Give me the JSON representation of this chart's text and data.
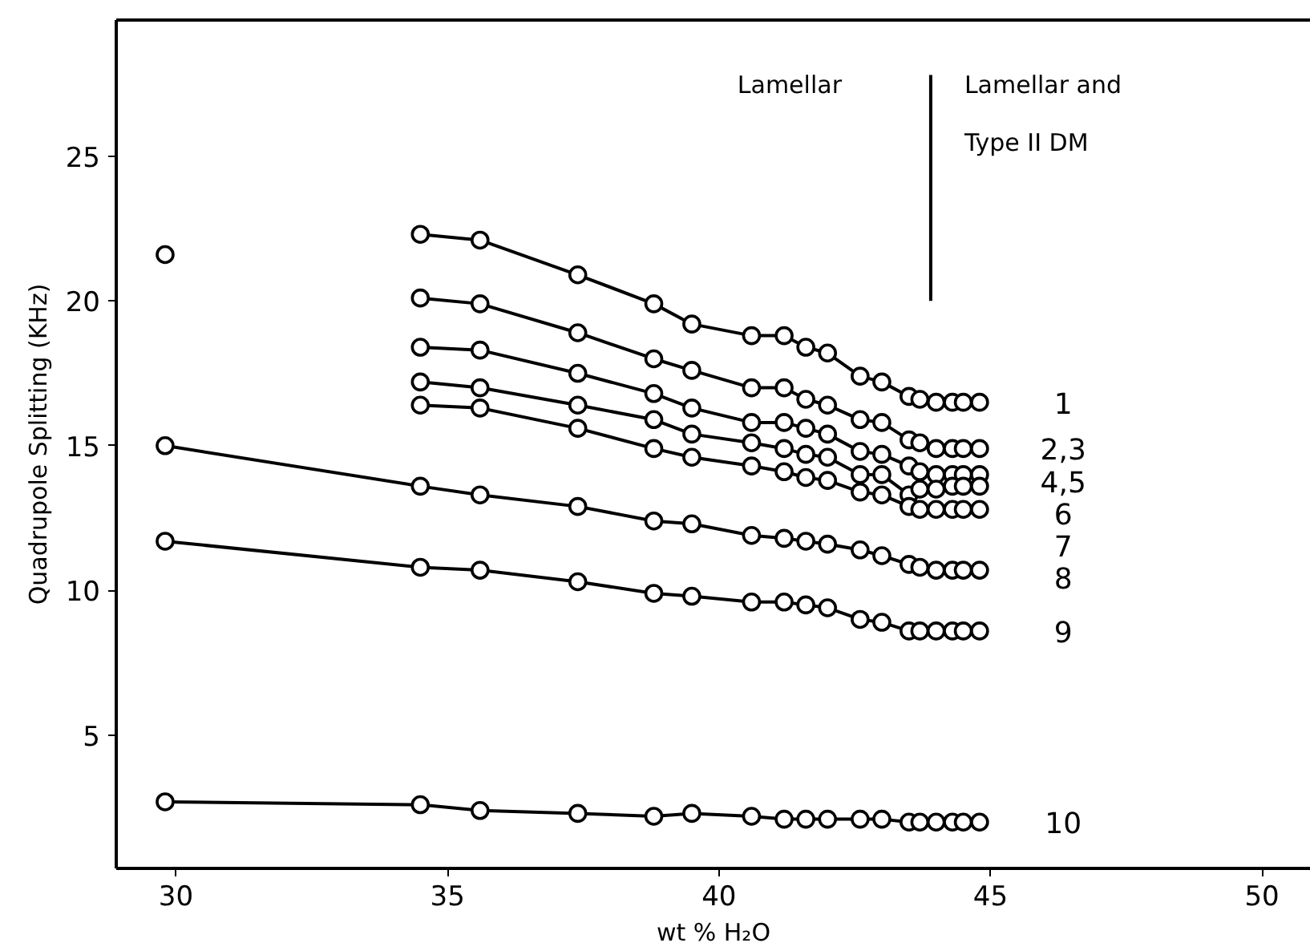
{
  "chart_data": {
    "type": "line",
    "xlabel": "wt % H₂O",
    "ylabel": "Quadrupole Splitting (KHz)",
    "xlim": [
      28.9,
      50.9
    ],
    "ylim": [
      0.4,
      29.7
    ],
    "xticks": [
      30,
      35,
      40,
      45,
      50
    ],
    "yticks": [
      5,
      10,
      15,
      20,
      25
    ],
    "grid": false,
    "marker": "circle",
    "line_style": "solid",
    "annotations": [
      "Lamellar",
      "Lamellar and\nType II DM"
    ],
    "series": [
      {
        "name": "1",
        "color": "#000000",
        "x": [
          34.5,
          35.6,
          37.4,
          38.8,
          39.5,
          40.6,
          41.2,
          41.6,
          42.0,
          42.6,
          43.0,
          43.5,
          43.7,
          44.0,
          44.3,
          44.5,
          44.8
        ],
        "values": [
          22.3,
          22.1,
          20.9,
          19.9,
          19.2,
          18.8,
          18.8,
          18.4,
          18.2,
          17.4,
          17.2,
          16.7,
          16.6,
          16.5,
          16.5,
          16.5,
          16.5
        ]
      },
      {
        "name": "2,3",
        "color": "#000000",
        "x": [
          34.5,
          35.6,
          37.4,
          38.8,
          39.5,
          40.6,
          41.2,
          41.6,
          42.0,
          42.6,
          43.0,
          43.5,
          43.7,
          44.0,
          44.3,
          44.5,
          44.8
        ],
        "values": [
          20.1,
          19.9,
          18.9,
          18.0,
          17.6,
          17.0,
          17.0,
          16.6,
          16.4,
          15.9,
          15.8,
          15.2,
          15.1,
          14.9,
          14.9,
          14.9,
          14.9
        ]
      },
      {
        "name": "4,5",
        "color": "#000000",
        "x": [
          34.5,
          35.6,
          37.4,
          38.8,
          39.5,
          40.6,
          41.2,
          41.6,
          42.0,
          42.6,
          43.0,
          43.5,
          43.7,
          44.0,
          44.3,
          44.5,
          44.8
        ],
        "values": [
          18.4,
          18.3,
          17.5,
          16.8,
          16.3,
          15.8,
          15.8,
          15.6,
          15.4,
          14.8,
          14.7,
          14.3,
          14.1,
          14.0,
          14.0,
          14.0,
          14.0
        ]
      },
      {
        "name": "6",
        "color": "#000000",
        "x": [
          34.5,
          35.6,
          37.4,
          38.8,
          39.5,
          40.6,
          41.2,
          41.6,
          42.0,
          42.6,
          43.0,
          43.5,
          43.7,
          44.0,
          44.3,
          44.5,
          44.8
        ],
        "values": [
          17.2,
          17.0,
          16.4,
          15.9,
          15.4,
          15.1,
          14.9,
          14.7,
          14.6,
          14.0,
          14.0,
          13.3,
          13.5,
          13.5,
          13.6,
          13.6,
          13.6
        ]
      },
      {
        "name": "7",
        "color": "#000000",
        "x": [
          34.5,
          35.6,
          37.4,
          38.8,
          39.5,
          40.6,
          41.2,
          41.6,
          42.0,
          42.6,
          43.0,
          43.5,
          43.7,
          44.0,
          44.3,
          44.5,
          44.8
        ],
        "values": [
          16.4,
          16.3,
          15.6,
          14.9,
          14.6,
          14.3,
          14.1,
          13.9,
          13.8,
          13.4,
          13.3,
          12.9,
          12.8,
          12.8,
          12.8,
          12.8,
          12.8
        ]
      },
      {
        "name": "8",
        "color": "#000000",
        "x": [
          29.8,
          34.5,
          35.6,
          37.4,
          38.8,
          39.5,
          40.6,
          41.2,
          41.6,
          42.0,
          42.6,
          43.0,
          43.5,
          43.7,
          44.0,
          44.3,
          44.5,
          44.8
        ],
        "values": [
          15.0,
          13.6,
          13.3,
          12.9,
          12.4,
          12.3,
          11.9,
          11.8,
          11.7,
          11.6,
          11.4,
          11.2,
          10.9,
          10.8,
          10.7,
          10.7,
          10.7,
          10.7
        ]
      },
      {
        "name": "9",
        "color": "#000000",
        "x": [
          29.8,
          34.5,
          35.6,
          37.4,
          38.8,
          39.5,
          40.6,
          41.2,
          41.6,
          42.0,
          42.6,
          43.0,
          43.5,
          43.7,
          44.0,
          44.3,
          44.5,
          44.8
        ],
        "values": [
          11.7,
          10.8,
          10.7,
          10.3,
          9.9,
          9.8,
          9.6,
          9.6,
          9.5,
          9.4,
          9.0,
          8.9,
          8.6,
          8.6,
          8.6,
          8.6,
          8.6,
          8.6
        ]
      },
      {
        "name": "10",
        "color": "#000000",
        "x": [
          29.8,
          34.5,
          35.6,
          37.4,
          38.8,
          39.5,
          40.6,
          41.2,
          41.6,
          42.0,
          42.6,
          43.0,
          43.5,
          43.7,
          44.0,
          44.3,
          44.5,
          44.8
        ],
        "values": [
          2.7,
          2.6,
          2.4,
          2.3,
          2.2,
          2.3,
          2.2,
          2.1,
          2.1,
          2.1,
          2.1,
          2.1,
          2.0,
          2.0,
          2.0,
          2.0,
          2.0,
          2.0
        ]
      },
      {
        "type": "scatter",
        "color": "#000000",
        "x": [
          29.8
        ],
        "values": [
          21.6
        ]
      },
      {
        "type": "line",
        "marker": "none",
        "color": "#000000",
        "x": [
          43.9,
          43.9
        ],
        "values": [
          20.0,
          27.8
        ]
      }
    ]
  }
}
